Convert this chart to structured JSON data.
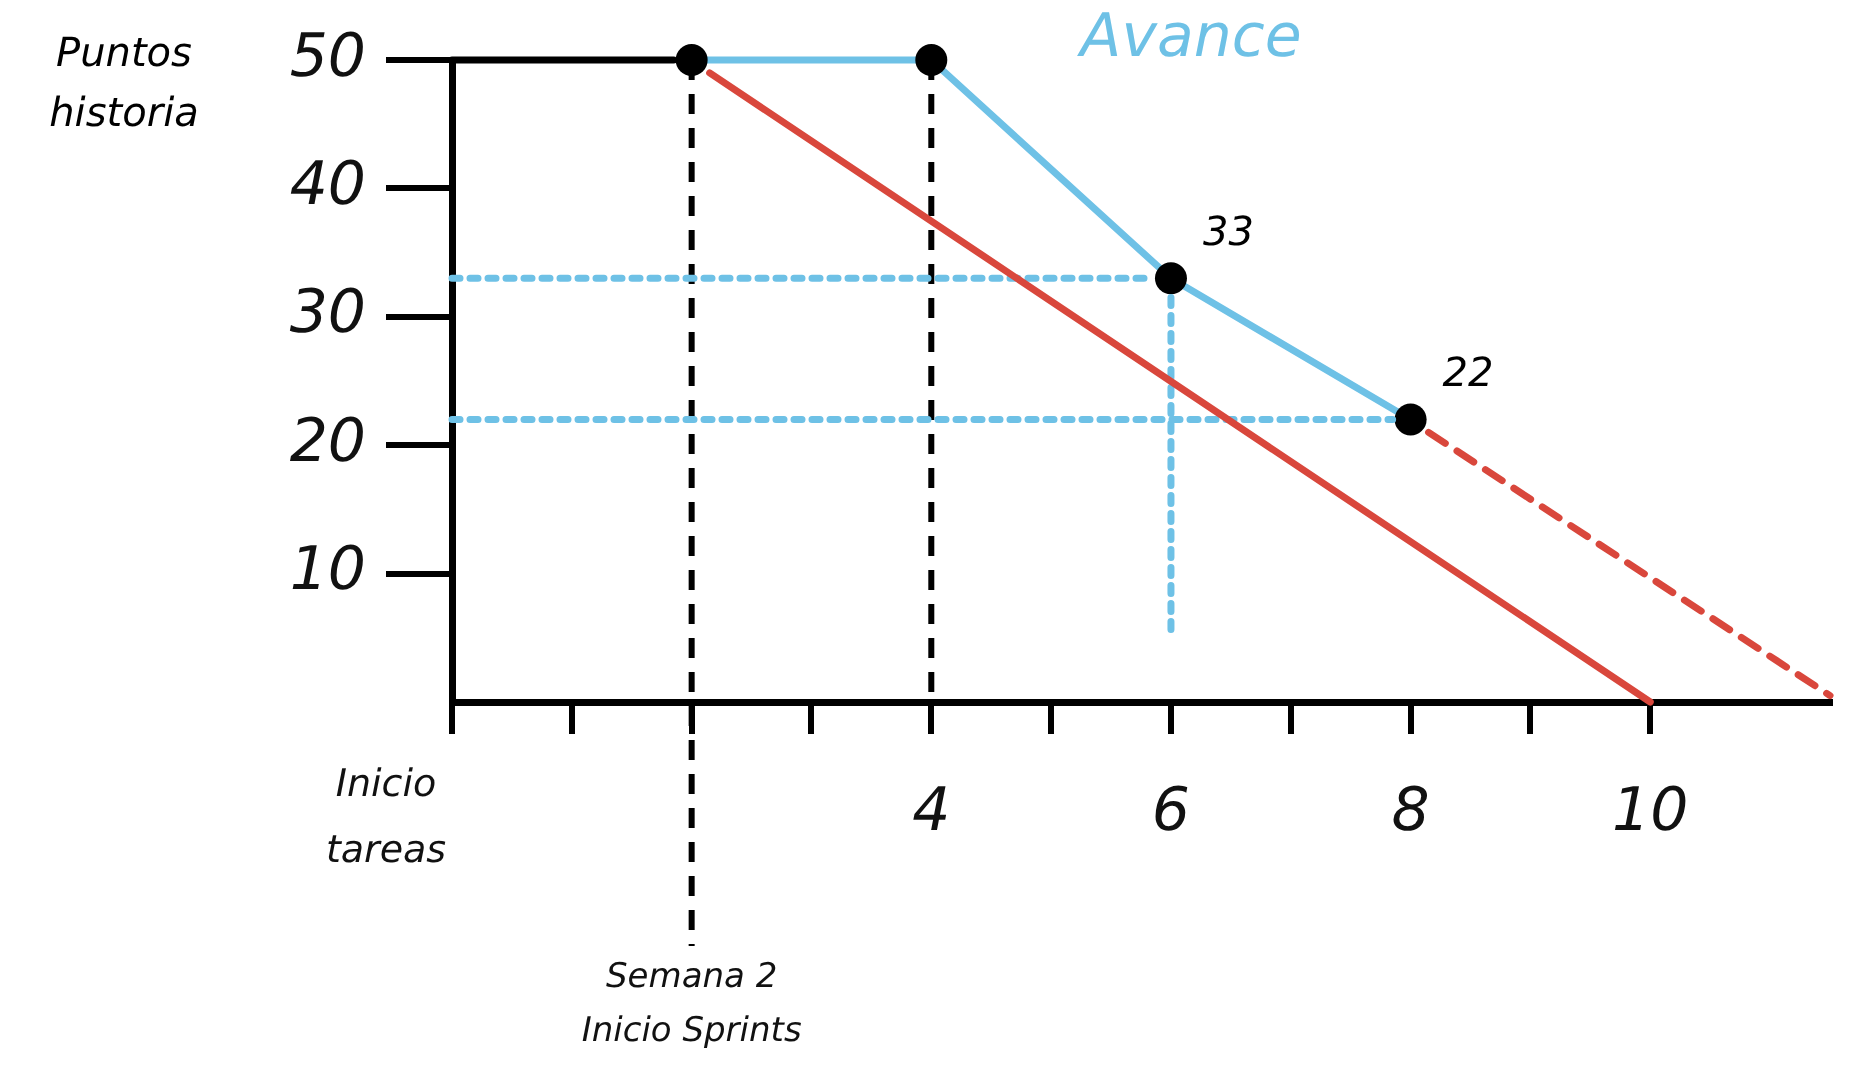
{
  "chart_data": {
    "type": "line",
    "ylabel": "Puntos historia",
    "legend": false,
    "xlim": [
      0,
      11.5
    ],
    "ylim": [
      0,
      50
    ],
    "annotations": [
      "Inicio tareas"
    ],
    "xticks": [
      {
        "value": 0,
        "label": null
      },
      {
        "value": 1,
        "label": null
      },
      {
        "value": 2,
        "label": null
      },
      {
        "value": 3,
        "label": null
      },
      4,
      {
        "value": 5,
        "label": null
      },
      6,
      {
        "value": 7,
        "label": null
      },
      8,
      {
        "value": 9,
        "label": null
      },
      10
    ],
    "yticks": [
      10,
      20,
      30,
      40,
      50
    ],
    "ref_lines": [
      {
        "axis": "x",
        "value": 2,
        "color": "#000000",
        "line_style": "dashed",
        "label": "Semana 2 Inicio Sprints"
      },
      {
        "axis": "x",
        "value": 4,
        "color": "#000000",
        "line_style": "dashed"
      }
    ],
    "series": [
      {
        "color": "#000000",
        "x": [
          0,
          1.85
        ],
        "values": [
          50,
          50
        ],
        "marker": "none",
        "line_style": "solid"
      },
      {
        "color": "#d9473c",
        "x": [
          2.15,
          10
        ],
        "values": [
          49,
          0
        ],
        "marker": "none",
        "line_style": "solid"
      },
      {
        "color": "#d9473c",
        "x": [
          8.15,
          11.5
        ],
        "values": [
          21,
          0.5
        ],
        "marker": "none",
        "line_style": "dashed"
      },
      {
        "color": "#6ec1e6",
        "x": [
          0,
          5.85
        ],
        "values": [
          33,
          33
        ],
        "marker": "none",
        "line_style": "dotted"
      },
      {
        "color": "#6ec1e6",
        "x": [
          0,
          7.85
        ],
        "values": [
          22,
          22
        ],
        "marker": "none",
        "line_style": "dotted"
      },
      {
        "color": "#6ec1e6",
        "x": [
          6,
          6
        ],
        "values": [
          31.5,
          5
        ],
        "marker": "none",
        "line_style": "dotted"
      },
      {
        "name": "Avance",
        "color": "#6ec1e6",
        "x": [
          2,
          4,
          6,
          8
        ],
        "values": [
          50,
          50,
          33,
          22
        ],
        "marker": "circle",
        "line_style": "solid",
        "value_labels": [
          null,
          null,
          "33",
          "22"
        ]
      }
    ]
  }
}
